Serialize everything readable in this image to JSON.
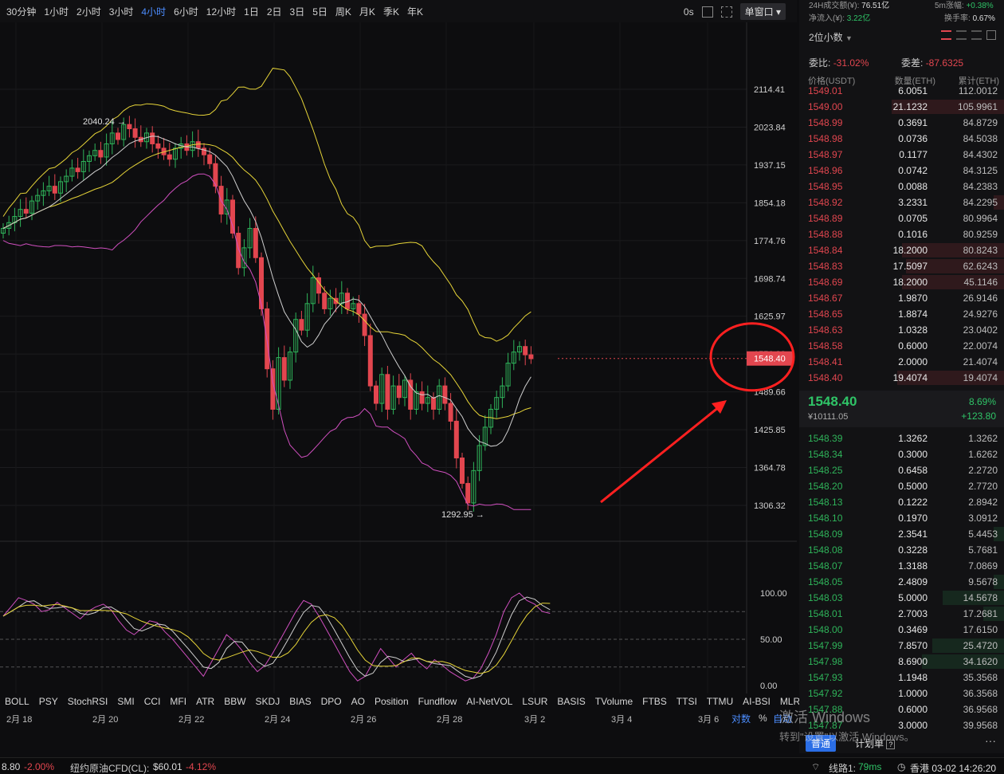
{
  "toolbar": {
    "timeframes": [
      "30分钟",
      "1小时",
      "2小时",
      "3小时",
      "4小时",
      "6小时",
      "12小时",
      "1日",
      "2日",
      "3日",
      "5日",
      "周K",
      "月K",
      "季K",
      "年K"
    ],
    "active_index": 4,
    "countdown": "0s",
    "window_mode": "单窗口"
  },
  "chart_data": {
    "type": "candlestick",
    "price_axis": [
      "2114.41",
      "2023.84",
      "1937.15",
      "1854.18",
      "1774.76",
      "1698.74",
      "1625.97",
      "1556.32",
      "1489.66",
      "1425.85",
      "1364.78",
      "1306.32"
    ],
    "ylim": [
      1280,
      2220
    ],
    "high_label": "2040.24",
    "low_label": "1292.95",
    "current_price": "1548.40",
    "x_dates": [
      "2月 18",
      "2月 20",
      "2月 22",
      "2月 24",
      "2月 26",
      "2月 28",
      "3月 2",
      "3月 4",
      "3月 6"
    ],
    "osc_axis": [
      "100.00",
      "50.00",
      "0.00"
    ],
    "osc_ylim": [
      -5,
      105
    ]
  },
  "indicators": [
    "BOLL",
    "PSY",
    "StochRSI",
    "SMI",
    "CCI",
    "MFI",
    "ATR",
    "BBW",
    "SKDJ",
    "BIAS",
    "DPO",
    "AO",
    "Position",
    "Fundflow",
    "AI-NetVOL",
    "LSUR",
    "BASIS",
    "TVolume",
    "FTBS",
    "TTSI",
    "TTMU",
    "AI-BSI",
    "MLR"
  ],
  "scale": {
    "log": "对数",
    "pct": "%",
    "auto": "自动"
  },
  "panel": {
    "vol24": "24H成交额(¥):",
    "vol24_val": "76.51亿",
    "net_in": "净流入(¥):",
    "net_in_val": "3.22亿",
    "m5": "5m涨幅:",
    "m5_val": "+0.38%",
    "turnover": "换手率:",
    "turnover_val": "0.67%",
    "decimals": "2位小数",
    "weibi_label": "委比:",
    "weibi": "-31.02%",
    "weicha_label": "委差:",
    "weicha": "-87.6325",
    "col_price": "价格(USDT)",
    "col_qty": "数量(ETH)",
    "col_cum": "累计(ETH)",
    "asks": [
      [
        "1549.01",
        "6.0051",
        "112.0012",
        0.0
      ],
      [
        "1549.00",
        "21.1232",
        "105.9961",
        0.55
      ],
      [
        "1548.99",
        "0.3691",
        "84.8729",
        0.0
      ],
      [
        "1548.98",
        "0.0736",
        "84.5038",
        0.0
      ],
      [
        "1548.97",
        "0.1177",
        "84.4302",
        0.0
      ],
      [
        "1548.96",
        "0.0742",
        "84.3125",
        0.0
      ],
      [
        "1548.95",
        "0.0088",
        "84.2383",
        0.0
      ],
      [
        "1548.92",
        "3.2331",
        "84.2295",
        0.05
      ],
      [
        "1548.89",
        "0.0705",
        "80.9964",
        0.0
      ],
      [
        "1548.88",
        "0.1016",
        "80.9259",
        0.0
      ],
      [
        "1548.84",
        "18.2000",
        "80.8243",
        0.5
      ],
      [
        "1548.83",
        "17.5097",
        "62.6243",
        0.48
      ],
      [
        "1548.69",
        "18.2000",
        "45.1146",
        0.5
      ],
      [
        "1548.67",
        "1.9870",
        "26.9146",
        0.0
      ],
      [
        "1548.65",
        "1.8874",
        "24.9276",
        0.0
      ],
      [
        "1548.63",
        "1.0328",
        "23.0402",
        0.0
      ],
      [
        "1548.58",
        "0.6000",
        "22.0074",
        0.0
      ],
      [
        "1548.41",
        "2.0000",
        "21.4074",
        0.0
      ],
      [
        "1548.40",
        "19.4074",
        "19.4074",
        0.52
      ]
    ],
    "last_price": "1548.40",
    "last_cny": "¥10111.05",
    "change_pct": "8.69%",
    "change_abs": "+123.80",
    "bids": [
      [
        "1548.39",
        "1.3262",
        "1.3262",
        0.0
      ],
      [
        "1548.34",
        "0.3000",
        "1.6262",
        0.0
      ],
      [
        "1548.25",
        "0.6458",
        "2.2720",
        0.0
      ],
      [
        "1548.20",
        "0.5000",
        "2.7720",
        0.0
      ],
      [
        "1548.13",
        "0.1222",
        "2.8942",
        0.0
      ],
      [
        "1548.10",
        "0.1970",
        "3.0912",
        0.0
      ],
      [
        "1548.09",
        "2.3541",
        "5.4453",
        0.05
      ],
      [
        "1548.08",
        "0.3228",
        "5.7681",
        0.0
      ],
      [
        "1548.07",
        "1.3188",
        "7.0869",
        0.0
      ],
      [
        "1548.05",
        "2.4809",
        "9.5678",
        0.05
      ],
      [
        "1548.03",
        "5.0000",
        "14.5678",
        0.3
      ],
      [
        "1548.01",
        "2.7003",
        "17.2681",
        0.1
      ],
      [
        "1548.00",
        "0.3469",
        "17.6150",
        0.0
      ],
      [
        "1547.99",
        "7.8570",
        "25.4720",
        0.35
      ],
      [
        "1547.98",
        "8.6900",
        "34.1620",
        0.4
      ],
      [
        "1547.93",
        "1.1948",
        "35.3568",
        0.0
      ],
      [
        "1547.92",
        "1.0000",
        "36.3568",
        0.0
      ],
      [
        "1547.88",
        "0.6000",
        "36.9568",
        0.0
      ],
      [
        "1547.87",
        "3.0000",
        "39.9568",
        0.0
      ]
    ],
    "btn_normal": "普通",
    "btn_plan": "计划单",
    "more": "···"
  },
  "watermark": {
    "line1": "激活 Windows",
    "line2": "转到\"设置\"以激活 Windows。"
  },
  "status": {
    "left_val": "8.80",
    "left_pct": "-2.00%",
    "cfd_label": "纽约原油CFD(CL):",
    "cfd_price": "$60.01",
    "cfd_pct": "-4.12%",
    "line_label": "线路1:",
    "line_ms": "79ms",
    "clock": "香港 03-02 14:26:20"
  }
}
